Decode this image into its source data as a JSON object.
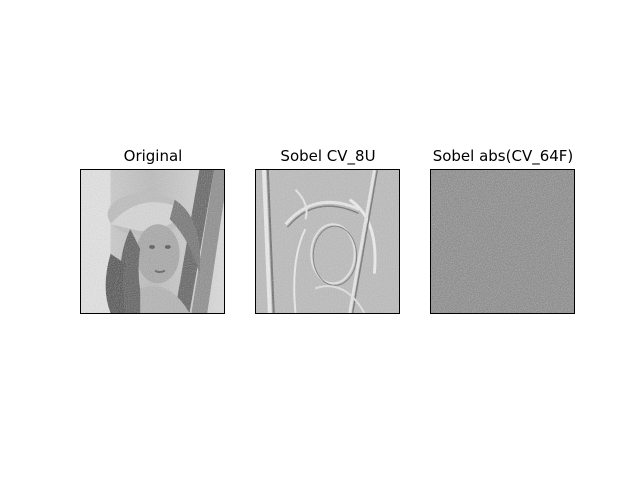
{
  "figure": {
    "panels": [
      {
        "title": "Original"
      },
      {
        "title": "Sobel CV_8U"
      },
      {
        "title": "Sobel abs(CV_64F)"
      }
    ]
  }
}
